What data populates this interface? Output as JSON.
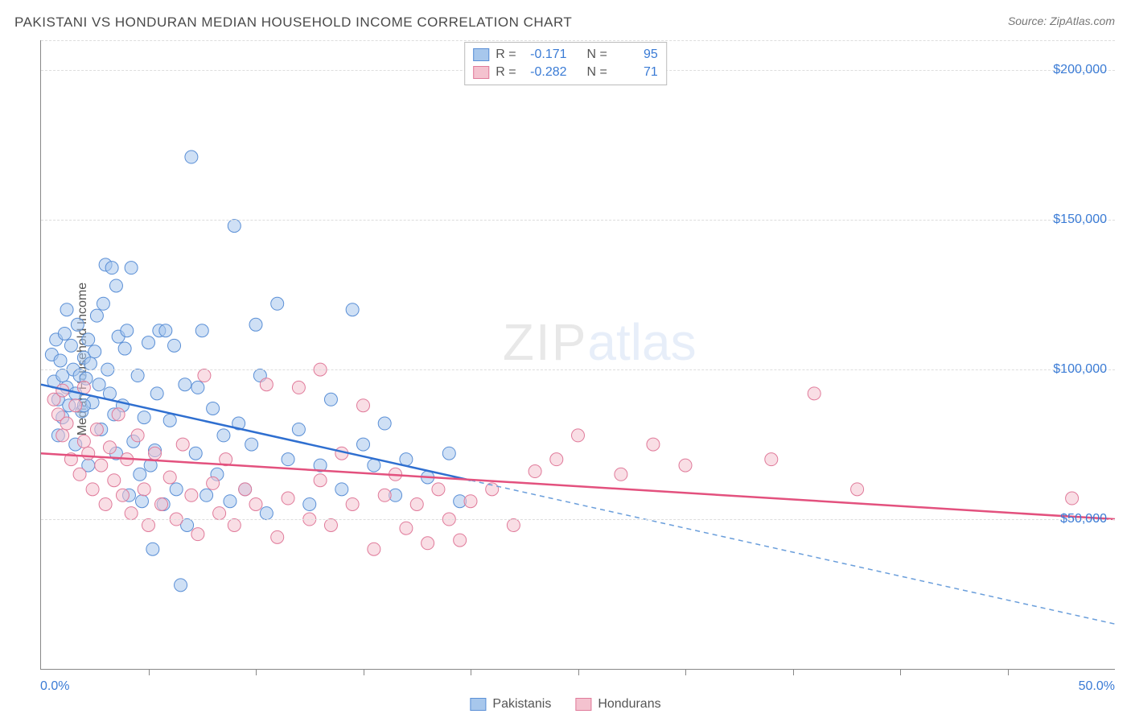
{
  "title": "PAKISTANI VS HONDURAN MEDIAN HOUSEHOLD INCOME CORRELATION CHART",
  "source_label": "Source:",
  "source_name": "ZipAtlas.com",
  "y_axis_label": "Median Household Income",
  "watermark_zip": "ZIP",
  "watermark_atlas": "atlas",
  "chart": {
    "type": "scatter",
    "background_color": "#ffffff",
    "grid_color": "#dddddd",
    "axis_color": "#888888",
    "x": {
      "min": 0,
      "max": 50,
      "min_label": "0.0%",
      "max_label": "50.0%",
      "tick_step": 5,
      "label_color": "#3a7bd5"
    },
    "y": {
      "min": 0,
      "max": 210000,
      "ticks": [
        50000,
        100000,
        150000,
        200000
      ],
      "tick_labels": [
        "$50,000",
        "$100,000",
        "$150,000",
        "$200,000"
      ],
      "label_color": "#3a7bd5"
    },
    "marker_radius": 8,
    "marker_opacity": 0.55,
    "series": [
      {
        "name": "Pakistanis",
        "fill": "#a7c7ec",
        "stroke": "#5a8fd6",
        "regression": {
          "solid_end_x": 20,
          "y_at_0": 95000,
          "y_at_50": 15000,
          "stroke": "#2f6fd0",
          "dash_stroke": "#6a9edb",
          "width": 2.5,
          "dash_pattern": "6 5"
        },
        "stats": {
          "R": "-0.171",
          "N": "95"
        },
        "points": [
          [
            0.5,
            105000
          ],
          [
            0.6,
            96000
          ],
          [
            0.7,
            110000
          ],
          [
            0.8,
            90000
          ],
          [
            0.9,
            103000
          ],
          [
            1.0,
            98000
          ],
          [
            1.1,
            112000
          ],
          [
            1.2,
            94000
          ],
          [
            1.3,
            88000
          ],
          [
            1.4,
            108000
          ],
          [
            1.5,
            100000
          ],
          [
            1.6,
            92000
          ],
          [
            1.7,
            115000
          ],
          [
            1.8,
            98000
          ],
          [
            1.9,
            86000
          ],
          [
            2.0,
            104000
          ],
          [
            2.1,
            97000
          ],
          [
            2.2,
            110000
          ],
          [
            2.3,
            102000
          ],
          [
            2.4,
            89000
          ],
          [
            2.5,
            106000
          ],
          [
            2.6,
            118000
          ],
          [
            2.7,
            95000
          ],
          [
            2.8,
            80000
          ],
          [
            3.0,
            135000
          ],
          [
            3.1,
            100000
          ],
          [
            3.2,
            92000
          ],
          [
            3.3,
            134000
          ],
          [
            3.4,
            85000
          ],
          [
            3.5,
            72000
          ],
          [
            3.6,
            111000
          ],
          [
            3.8,
            88000
          ],
          [
            4.0,
            113000
          ],
          [
            4.2,
            134000
          ],
          [
            4.3,
            76000
          ],
          [
            4.5,
            98000
          ],
          [
            4.7,
            56000
          ],
          [
            4.8,
            84000
          ],
          [
            5.0,
            109000
          ],
          [
            5.1,
            68000
          ],
          [
            5.2,
            40000
          ],
          [
            5.4,
            92000
          ],
          [
            5.5,
            113000
          ],
          [
            5.7,
            55000
          ],
          [
            5.8,
            113000
          ],
          [
            6.0,
            83000
          ],
          [
            6.2,
            108000
          ],
          [
            6.3,
            60000
          ],
          [
            6.5,
            28000
          ],
          [
            6.7,
            95000
          ],
          [
            7.0,
            171000
          ],
          [
            7.2,
            72000
          ],
          [
            7.3,
            94000
          ],
          [
            7.5,
            113000
          ],
          [
            7.7,
            58000
          ],
          [
            8.0,
            87000
          ],
          [
            8.2,
            65000
          ],
          [
            8.5,
            78000
          ],
          [
            8.8,
            56000
          ],
          [
            9.0,
            148000
          ],
          [
            9.2,
            82000
          ],
          [
            9.5,
            60000
          ],
          [
            9.8,
            75000
          ],
          [
            10.0,
            115000
          ],
          [
            10.2,
            98000
          ],
          [
            10.5,
            52000
          ],
          [
            11.0,
            122000
          ],
          [
            11.5,
            70000
          ],
          [
            12.0,
            80000
          ],
          [
            12.5,
            55000
          ],
          [
            13.0,
            68000
          ],
          [
            13.5,
            90000
          ],
          [
            14.0,
            60000
          ],
          [
            14.5,
            120000
          ],
          [
            15.0,
            75000
          ],
          [
            15.5,
            68000
          ],
          [
            16.0,
            82000
          ],
          [
            16.5,
            58000
          ],
          [
            17.0,
            70000
          ],
          [
            18.0,
            64000
          ],
          [
            19.0,
            72000
          ],
          [
            19.5,
            56000
          ],
          [
            3.9,
            107000
          ],
          [
            4.6,
            65000
          ],
          [
            6.8,
            48000
          ],
          [
            1.0,
            84000
          ],
          [
            1.2,
            120000
          ],
          [
            0.8,
            78000
          ],
          [
            2.2,
            68000
          ],
          [
            2.9,
            122000
          ],
          [
            1.6,
            75000
          ],
          [
            2.0,
            88000
          ],
          [
            3.5,
            128000
          ],
          [
            4.1,
            58000
          ],
          [
            5.3,
            73000
          ]
        ]
      },
      {
        "name": "Hondurans",
        "fill": "#f4c2cf",
        "stroke": "#e07a9a",
        "regression": {
          "solid_end_x": 50,
          "y_at_0": 72000,
          "y_at_50": 50000,
          "stroke": "#e3517e",
          "dash_stroke": "#e3517e",
          "width": 2.5,
          "dash_pattern": ""
        },
        "stats": {
          "R": "-0.282",
          "N": "71"
        },
        "points": [
          [
            0.6,
            90000
          ],
          [
            0.8,
            85000
          ],
          [
            1.0,
            78000
          ],
          [
            1.2,
            82000
          ],
          [
            1.4,
            70000
          ],
          [
            1.6,
            88000
          ],
          [
            1.8,
            65000
          ],
          [
            2.0,
            76000
          ],
          [
            2.2,
            72000
          ],
          [
            2.4,
            60000
          ],
          [
            2.6,
            80000
          ],
          [
            2.8,
            68000
          ],
          [
            3.0,
            55000
          ],
          [
            3.2,
            74000
          ],
          [
            3.4,
            63000
          ],
          [
            3.6,
            85000
          ],
          [
            3.8,
            58000
          ],
          [
            4.0,
            70000
          ],
          [
            4.2,
            52000
          ],
          [
            4.5,
            78000
          ],
          [
            4.8,
            60000
          ],
          [
            5.0,
            48000
          ],
          [
            5.3,
            72000
          ],
          [
            5.6,
            55000
          ],
          [
            6.0,
            64000
          ],
          [
            6.3,
            50000
          ],
          [
            6.6,
            75000
          ],
          [
            7.0,
            58000
          ],
          [
            7.3,
            45000
          ],
          [
            7.6,
            98000
          ],
          [
            8.0,
            62000
          ],
          [
            8.3,
            52000
          ],
          [
            8.6,
            70000
          ],
          [
            9.0,
            48000
          ],
          [
            9.5,
            60000
          ],
          [
            10.0,
            55000
          ],
          [
            10.5,
            95000
          ],
          [
            11.0,
            44000
          ],
          [
            11.5,
            57000
          ],
          [
            12.0,
            94000
          ],
          [
            12.5,
            50000
          ],
          [
            13.0,
            63000
          ],
          [
            13.5,
            48000
          ],
          [
            14.0,
            72000
          ],
          [
            14.5,
            55000
          ],
          [
            15.0,
            88000
          ],
          [
            15.5,
            40000
          ],
          [
            16.0,
            58000
          ],
          [
            16.5,
            65000
          ],
          [
            17.0,
            47000
          ],
          [
            17.5,
            55000
          ],
          [
            18.0,
            42000
          ],
          [
            18.5,
            60000
          ],
          [
            19.0,
            50000
          ],
          [
            19.5,
            43000
          ],
          [
            20.0,
            56000
          ],
          [
            21.0,
            60000
          ],
          [
            22.0,
            48000
          ],
          [
            23.0,
            66000
          ],
          [
            24.0,
            70000
          ],
          [
            25.0,
            78000
          ],
          [
            27.0,
            65000
          ],
          [
            28.5,
            75000
          ],
          [
            30.0,
            68000
          ],
          [
            34.0,
            70000
          ],
          [
            36.0,
            92000
          ],
          [
            38.0,
            60000
          ],
          [
            48.0,
            57000
          ],
          [
            13.0,
            100000
          ],
          [
            2.0,
            94000
          ],
          [
            1.0,
            93000
          ]
        ]
      }
    ]
  },
  "stats_legend_labels": {
    "R": "R =",
    "N": "N ="
  },
  "bottom_legend": [
    "Pakistanis",
    "Hondurans"
  ]
}
